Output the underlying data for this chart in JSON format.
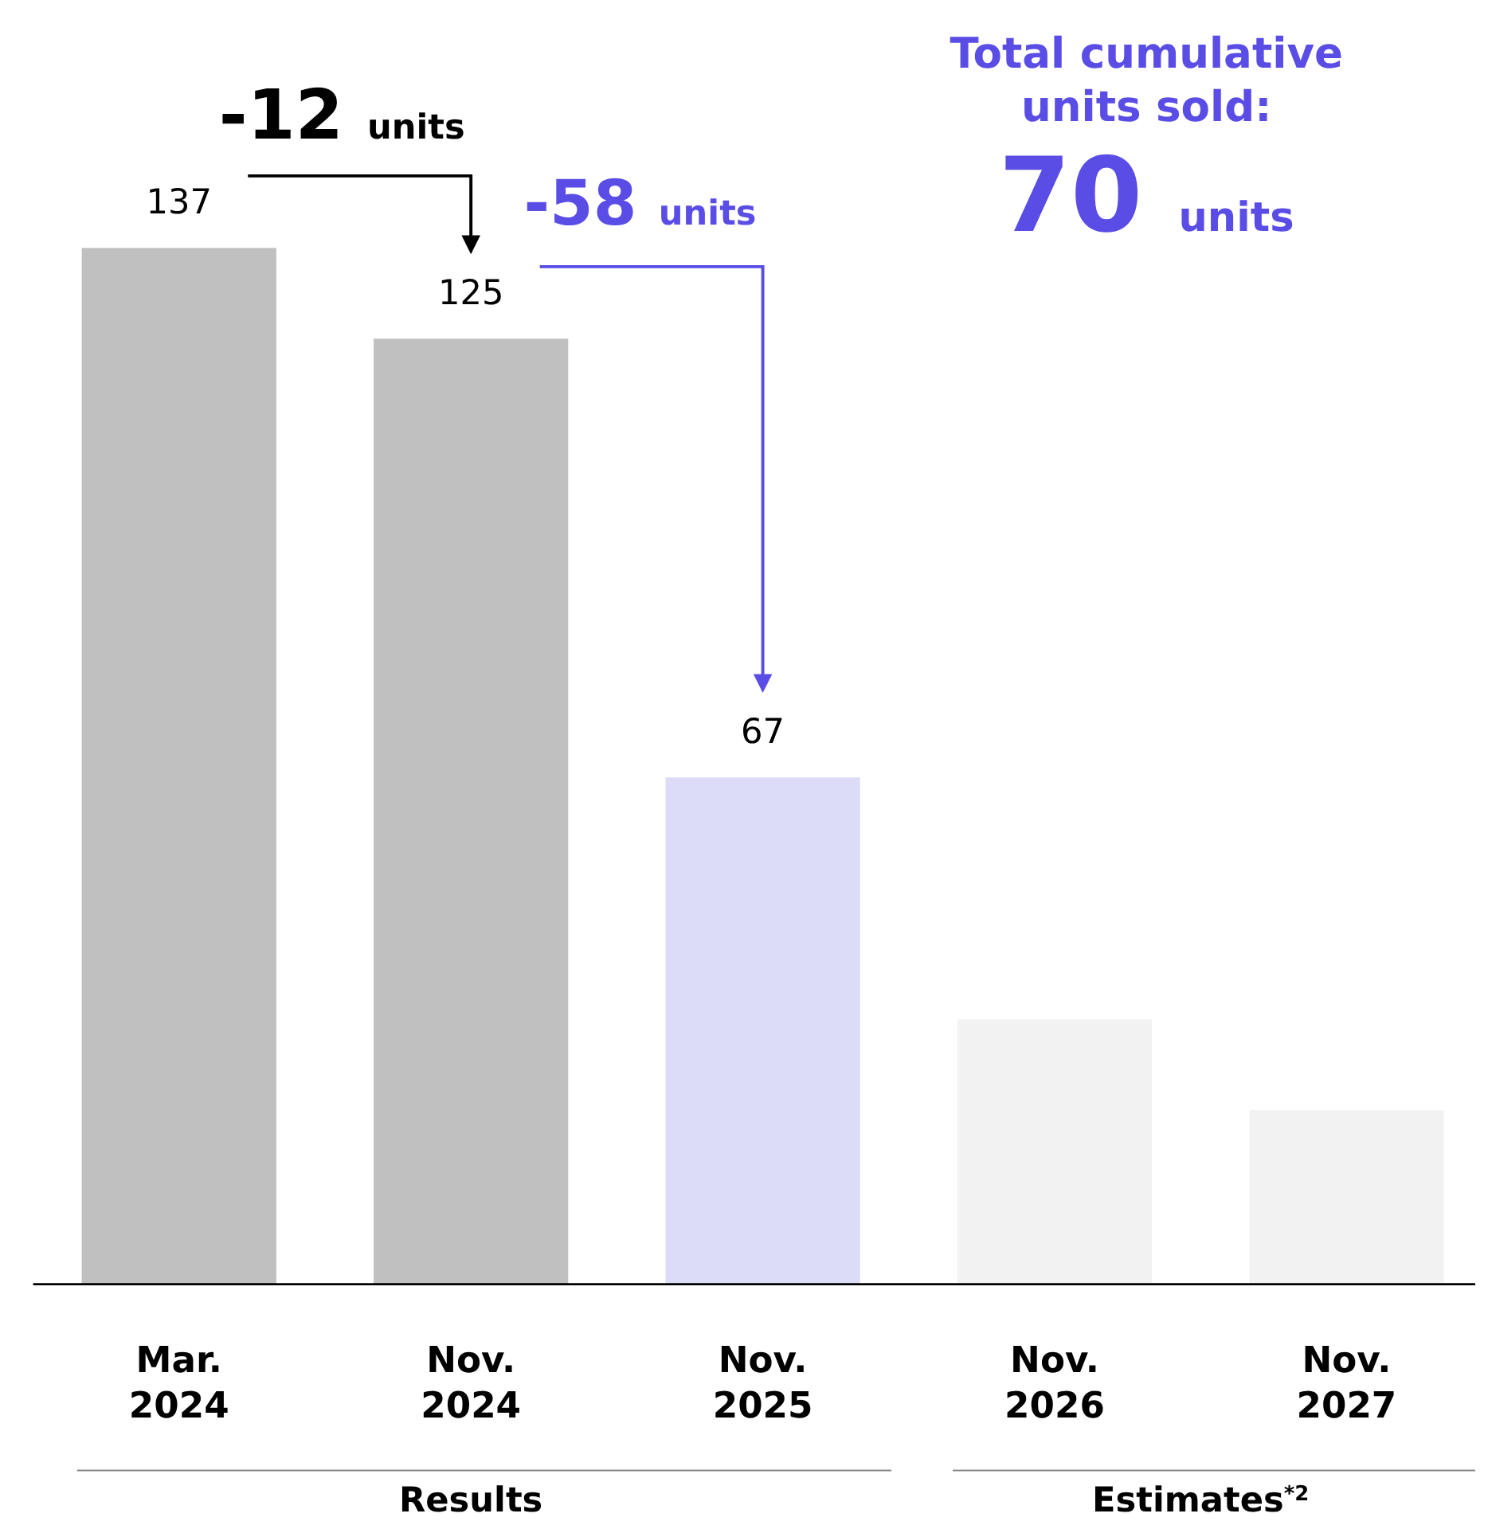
{
  "chart_data": {
    "type": "bar",
    "categories": [
      "Mar.\n2024",
      "Nov.\n2024",
      "Nov.\n2025",
      "Nov.\n2026",
      "Nov.\n2027"
    ],
    "values": [
      137,
      125,
      67,
      35,
      23
    ],
    "colors": [
      "#c0c0c0",
      "#c0c0c0",
      "#dcdcf8",
      "#f2f2f2",
      "#f2f2f2"
    ],
    "value_labels": [
      "137",
      "125",
      "67",
      null,
      null
    ],
    "annotations": [
      "-12 units",
      "-58 units",
      "Total cumulative\nunits sold:\n70 units",
      "Results",
      "Estimates$^{*2}$"
    ]
  }
}
